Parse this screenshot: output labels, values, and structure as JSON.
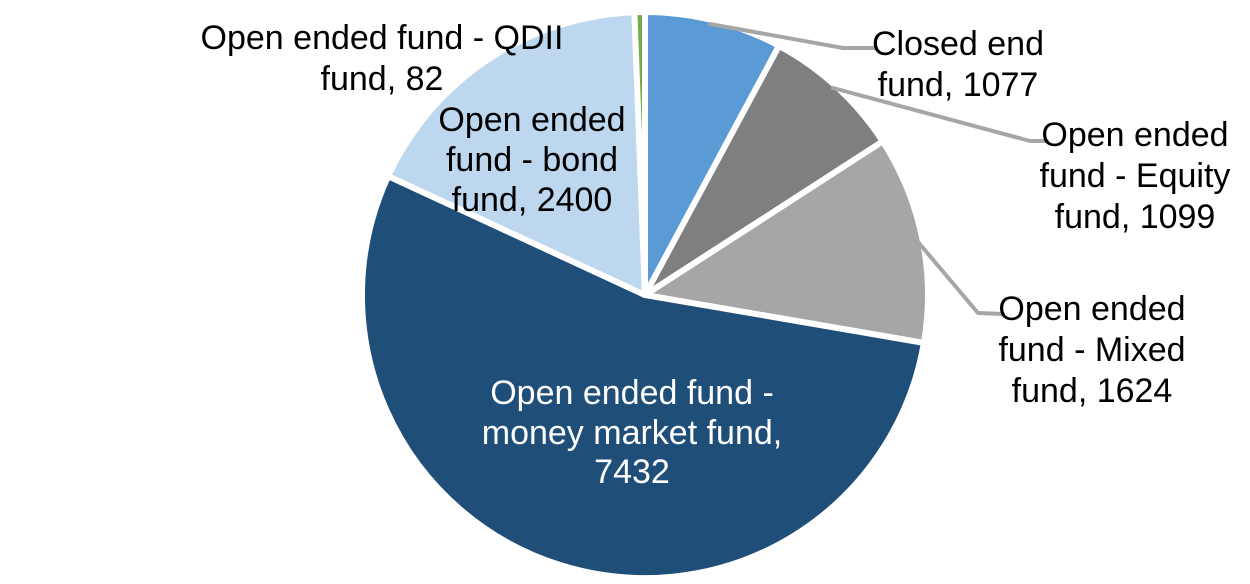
{
  "chart_data": {
    "type": "pie",
    "title": "",
    "legend": "none",
    "background_color": "#FFFFFF",
    "slice_border_color": "#FFFFFF",
    "leader_line_color": "#A6A6A6",
    "layout_hints": {
      "start_angle_deg": 0,
      "direction": "clockwise",
      "grid": false,
      "data_labels": "category name and value, outside for small slices, inside for largest slice"
    },
    "series": [
      {
        "key": "closed-end-fund",
        "label": "Closed end fund",
        "value": 1077,
        "color": "#5B9BD5",
        "label_color": "#000000",
        "label_lines": [
          "Closed end",
          "fund, 1077"
        ]
      },
      {
        "key": "open-ended-equity-fund",
        "label": "Open ended fund - Equity fund",
        "value": 1099,
        "color": "#7F7F7F",
        "label_color": "#000000",
        "label_lines": [
          "Open ended",
          "fund - Equity",
          "fund, 1099"
        ]
      },
      {
        "key": "open-ended-mixed-fund",
        "label": "Open ended fund - Mixed fund",
        "value": 1624,
        "color": "#A6A6A6",
        "label_color": "#000000",
        "label_lines": [
          "Open ended",
          "fund - Mixed",
          "fund, 1624"
        ]
      },
      {
        "key": "open-ended-money-market-fund",
        "label": "Open ended fund - money market fund",
        "value": 7432,
        "color": "#1F4E79",
        "label_color": "#FFFFFF",
        "label_lines": [
          "Open ended fund -",
          "money market fund,",
          "7432"
        ]
      },
      {
        "key": "open-ended-bond-fund",
        "label": "Open ended fund - bond fund",
        "value": 2400,
        "color": "#BDD7EE",
        "label_color": "#000000",
        "label_lines": [
          "Open ended",
          "fund - bond",
          "fund, 2400"
        ]
      },
      {
        "key": "open-ended-qdii-fund",
        "label": "Open ended fund - QDII fund",
        "value": 82,
        "color": "#70AD47",
        "label_color": "#000000",
        "label_lines": [
          "Open ended fund - QDII",
          "fund, 82"
        ]
      }
    ]
  }
}
